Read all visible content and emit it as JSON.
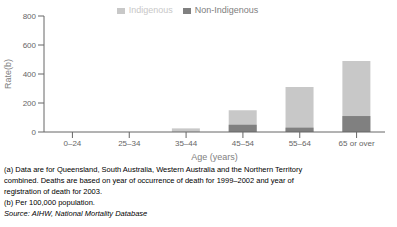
{
  "chart_data": {
    "type": "bar",
    "categories": [
      "0–24",
      "25–34",
      "35–44",
      "45–54",
      "55–64",
      "65 or over"
    ],
    "series": [
      {
        "name": "Indigenous",
        "color": "#c8c8c8",
        "values": [
          0,
          0,
          25,
          150,
          310,
          490
        ]
      },
      {
        "name": "Non-Ind­igenous",
        "color": "#808080",
        "values": [
          0,
          0,
          0,
          50,
          30,
          110
        ]
      }
    ],
    "xlabel": "Age (years)",
    "ylabel": "Rate(b)",
    "ylim": [
      0,
      800
    ],
    "yticks": [
      0,
      200,
      400,
      600,
      800
    ],
    "grid": false,
    "legend": "upper center",
    "annotations": [
      "(a) Data are for Queensland, South Australia, Western Australia and the Northern Territory",
      "combined.  Deaths are based on year of occurrence of death for 1999–2002 and year of",
      "registration of death for 2003.",
      "(b) Per 100,000 population.",
      "Source:  AIHW, National Mortality Database"
    ]
  }
}
